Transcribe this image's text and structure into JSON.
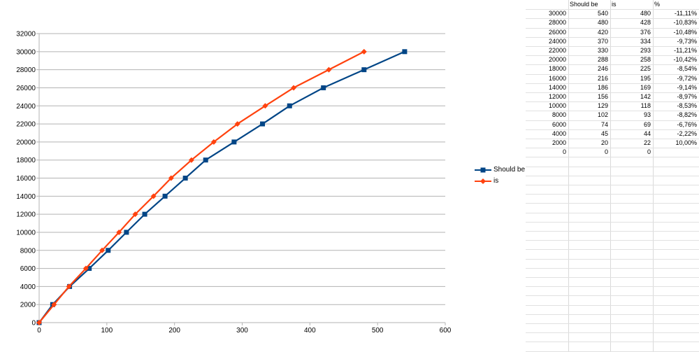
{
  "chart_data": {
    "type": "line",
    "xlim": [
      0,
      600
    ],
    "ylim": [
      0,
      32000
    ],
    "x_ticks": [
      "0",
      "100",
      "200",
      "300",
      "400",
      "500",
      "600"
    ],
    "y_ticks": [
      "0",
      "2000",
      "4000",
      "6000",
      "8000",
      "10000",
      "12000",
      "14000",
      "16000",
      "18000",
      "20000",
      "22000",
      "24000",
      "26000",
      "28000",
      "30000",
      "32000"
    ],
    "grid": "horizontal",
    "legend_position": "right",
    "series": [
      {
        "name": "Should be",
        "color": "#004586",
        "marker": "square",
        "x": [
          0,
          20,
          45,
          74,
          102,
          129,
          156,
          186,
          216,
          246,
          288,
          330,
          370,
          420,
          480,
          540
        ],
        "y": [
          0,
          2000,
          4000,
          6000,
          8000,
          10000,
          12000,
          14000,
          16000,
          18000,
          20000,
          22000,
          24000,
          26000,
          28000,
          30000
        ]
      },
      {
        "name": "is",
        "color": "#ff420e",
        "marker": "diamond",
        "x": [
          0,
          22,
          44,
          69,
          93,
          118,
          142,
          169,
          195,
          225,
          258,
          293,
          334,
          376,
          428,
          480
        ],
        "y": [
          0,
          2000,
          4000,
          6000,
          8000,
          10000,
          12000,
          14000,
          16000,
          18000,
          20000,
          22000,
          24000,
          26000,
          28000,
          30000
        ]
      }
    ]
  },
  "sheet": {
    "headers": [
      "",
      "Should be",
      "is",
      "%"
    ],
    "rows": [
      [
        "30000",
        "540",
        "480",
        "-11,11%"
      ],
      [
        "28000",
        "480",
        "428",
        "-10,83%"
      ],
      [
        "26000",
        "420",
        "376",
        "-10,48%"
      ],
      [
        "24000",
        "370",
        "334",
        "-9,73%"
      ],
      [
        "22000",
        "330",
        "293",
        "-11,21%"
      ],
      [
        "20000",
        "288",
        "258",
        "-10,42%"
      ],
      [
        "18000",
        "246",
        "225",
        "-8,54%"
      ],
      [
        "16000",
        "216",
        "195",
        "-9,72%"
      ],
      [
        "14000",
        "186",
        "169",
        "-9,14%"
      ],
      [
        "12000",
        "156",
        "142",
        "-8,97%"
      ],
      [
        "10000",
        "129",
        "118",
        "-8,53%"
      ],
      [
        "8000",
        "102",
        "93",
        "-8,82%"
      ],
      [
        "6000",
        "74",
        "69",
        "-6,76%"
      ],
      [
        "4000",
        "45",
        "44",
        "-2,22%"
      ],
      [
        "2000",
        "20",
        "22",
        "10,00%"
      ],
      [
        "0",
        "0",
        "0",
        ""
      ]
    ]
  }
}
